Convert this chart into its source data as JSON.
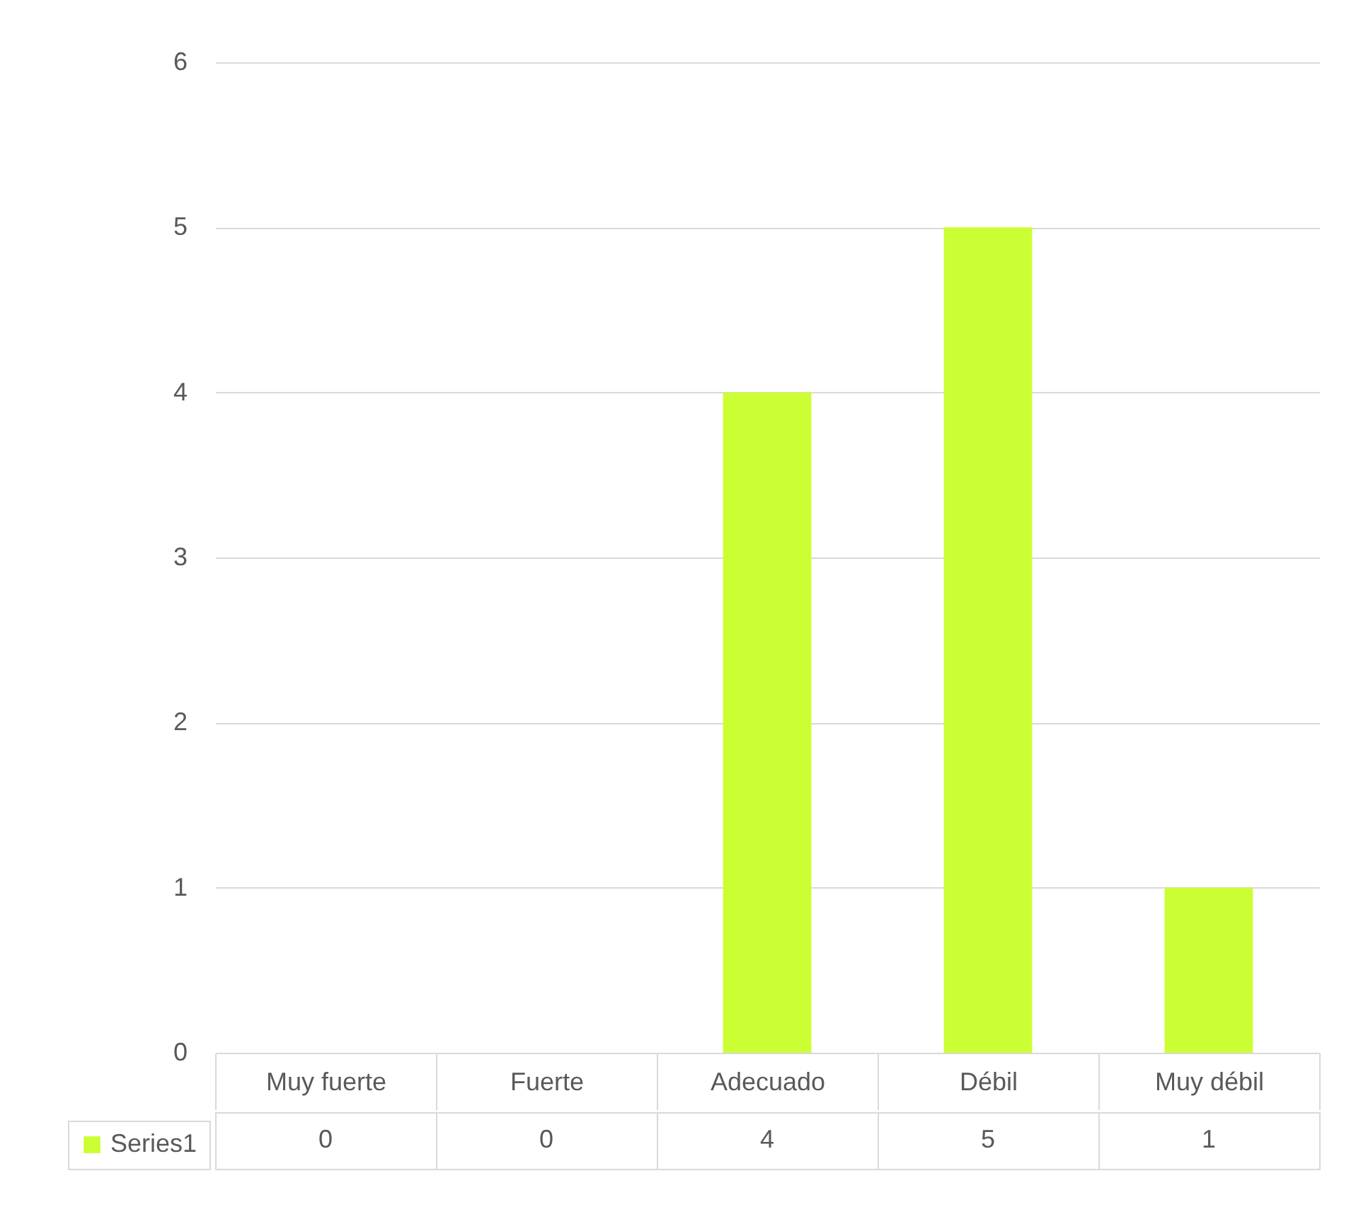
{
  "chart_data": {
    "type": "bar",
    "categories": [
      "Muy fuerte",
      "Fuerte",
      "Adecuado",
      "Débil",
      "Muy débil"
    ],
    "series": [
      {
        "name": "Series1",
        "color": "#ccff33",
        "values": [
          0,
          0,
          4,
          5,
          1
        ]
      }
    ],
    "ylim": [
      0,
      6
    ],
    "yticks": [
      0,
      1,
      2,
      3,
      4,
      5,
      6
    ],
    "grid": "y",
    "legend": "bottom left",
    "data_labels": true
  }
}
